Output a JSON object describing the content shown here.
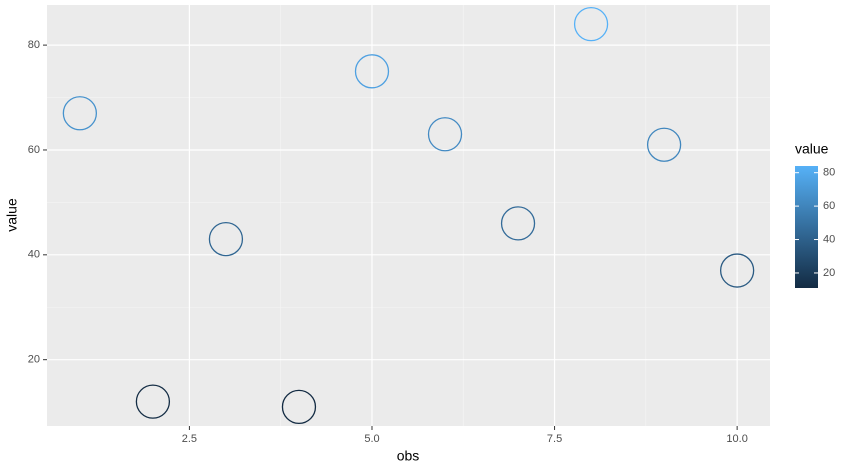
{
  "chart_data": {
    "type": "scatter",
    "x_label": "obs",
    "y_label": "value",
    "x": [
      1,
      2,
      3,
      4,
      5,
      6,
      7,
      8,
      9,
      10
    ],
    "values": [
      67,
      12,
      43,
      11,
      75,
      63,
      46,
      84,
      61,
      37
    ],
    "xlim": [
      0.55,
      10.45
    ],
    "xticks": [
      2.5,
      {
        "value": 5,
        "label": "5.0"
      },
      7.5,
      {
        "value": 10,
        "label": "10.0"
      }
    ],
    "ylim": [
      7.35,
      87.65
    ],
    "yticks": [
      20,
      40,
      60,
      80
    ],
    "grid": true,
    "color_scale": {
      "title": "value",
      "low": "#132B43",
      "high": "#56B1F7",
      "ticks": [
        20,
        40,
        60,
        80
      ]
    }
  }
}
